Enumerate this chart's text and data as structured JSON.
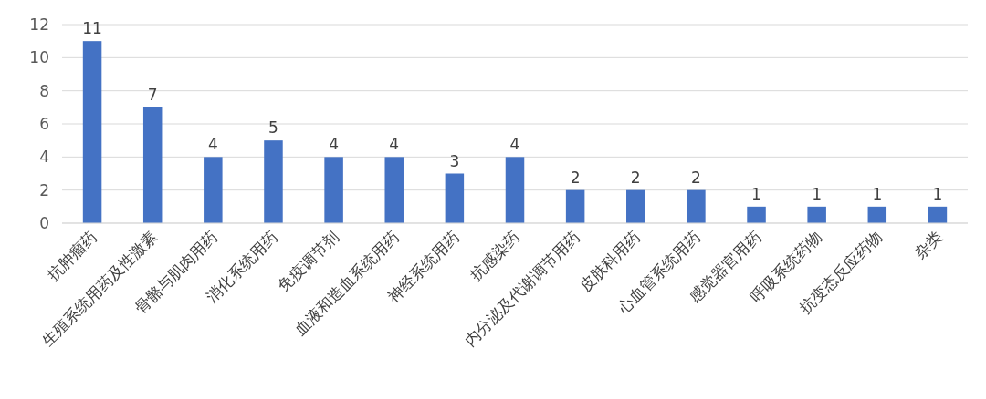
{
  "chart_data": {
    "type": "bar",
    "categories": [
      "抗肿瘤药",
      "生殖系统用药及性激素",
      "骨骼与肌肉用药",
      "消化系统用药",
      "免疫调节剂",
      "血液和造血系统用药",
      "神经系统用药",
      "抗感染药",
      "内分泌及代谢调节用药",
      "皮肤科用药",
      "心血管系统用药",
      "感觉器官用药",
      "呼吸系统药物",
      "抗变态反应药物",
      "杂类"
    ],
    "values": [
      11,
      7,
      4,
      5,
      4,
      4,
      3,
      4,
      2,
      2,
      2,
      1,
      1,
      1,
      1
    ],
    "color": "#4472c4",
    "ylim": [
      0,
      12
    ],
    "yticks": [
      0,
      2,
      4,
      6,
      8,
      10,
      12
    ],
    "grid": "y",
    "data_labels": true
  }
}
